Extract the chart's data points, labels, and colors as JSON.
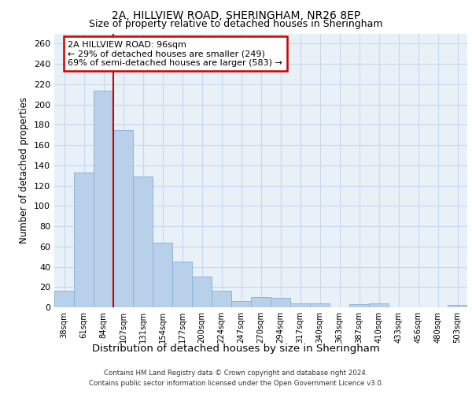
{
  "title1": "2A, HILLVIEW ROAD, SHERINGHAM, NR26 8EP",
  "title2": "Size of property relative to detached houses in Sheringham",
  "xlabel": "Distribution of detached houses by size in Sheringham",
  "ylabel": "Number of detached properties",
  "categories": [
    "38sqm",
    "61sqm",
    "84sqm",
    "107sqm",
    "131sqm",
    "154sqm",
    "177sqm",
    "200sqm",
    "224sqm",
    "247sqm",
    "270sqm",
    "294sqm",
    "317sqm",
    "340sqm",
    "363sqm",
    "387sqm",
    "410sqm",
    "433sqm",
    "456sqm",
    "480sqm",
    "503sqm"
  ],
  "values": [
    16,
    133,
    214,
    175,
    129,
    64,
    45,
    30,
    16,
    6,
    10,
    9,
    4,
    4,
    0,
    3,
    4,
    0,
    0,
    0,
    2
  ],
  "bar_color": "#b8d0ea",
  "bar_edge_color": "#90b4d8",
  "grid_color": "#c8d8ee",
  "background_color": "#e8f0f8",
  "annotation_box_text": "2A HILLVIEW ROAD: 96sqm\n← 29% of detached houses are smaller (249)\n69% of semi-detached houses are larger (583) →",
  "annotation_box_color": "#ffffff",
  "annotation_box_edge_color": "#cc0000",
  "red_line_x": 2.5,
  "footer1": "Contains HM Land Registry data © Crown copyright and database right 2024.",
  "footer2": "Contains public sector information licensed under the Open Government Licence v3.0.",
  "ylim": [
    0,
    270
  ],
  "yticks": [
    0,
    20,
    40,
    60,
    80,
    100,
    120,
    140,
    160,
    180,
    200,
    220,
    240,
    260
  ]
}
